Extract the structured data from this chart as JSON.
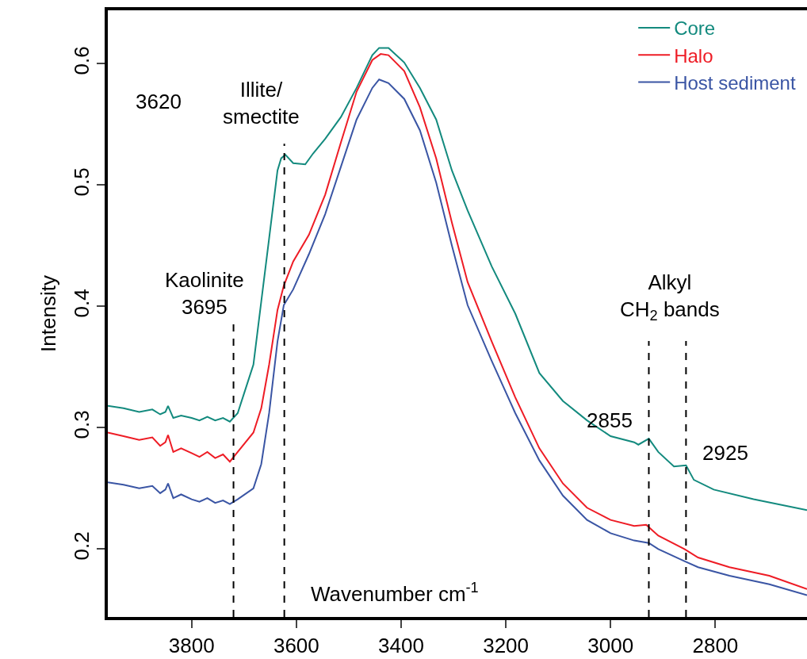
{
  "chart_data": {
    "type": "line",
    "xlabel": "Wavenumber cm$^{-1}$",
    "ylabel": "Intensity",
    "xlim": [
      3960,
      2625
    ],
    "xticks": [
      3800,
      3600,
      3400,
      3200,
      3000,
      2800
    ],
    "ylim": [
      0.144,
      0.644
    ],
    "yticks": [
      0.2,
      0.3,
      0.4,
      0.5,
      0.6
    ],
    "grid": false,
    "legend": "top right",
    "line_style": "solid",
    "marker": "none",
    "series": [
      {
        "name": "Core",
        "color": "#138a7e",
        "x": [
          3960,
          3930,
          3900,
          3875,
          3860,
          3850,
          3845,
          3835,
          3820,
          3800,
          3785,
          3770,
          3755,
          3740,
          3727,
          3712,
          3697,
          3682,
          3667,
          3652,
          3636,
          3629,
          3621,
          3606,
          3583,
          3568,
          3545,
          3515,
          3485,
          3455,
          3442,
          3424,
          3394,
          3364,
          3333,
          3303,
          3273,
          3227,
          3182,
          3136,
          3091,
          3045,
          3000,
          2955,
          2947,
          2927,
          2909,
          2879,
          2856,
          2841,
          2803,
          2727,
          2625
        ],
        "values": [
          0.318,
          0.316,
          0.313,
          0.315,
          0.311,
          0.313,
          0.318,
          0.308,
          0.31,
          0.308,
          0.306,
          0.309,
          0.306,
          0.308,
          0.305,
          0.312,
          0.332,
          0.352,
          0.404,
          0.456,
          0.512,
          0.522,
          0.525,
          0.518,
          0.517,
          0.526,
          0.538,
          0.556,
          0.58,
          0.607,
          0.613,
          0.613,
          0.601,
          0.58,
          0.554,
          0.512,
          0.479,
          0.433,
          0.394,
          0.345,
          0.322,
          0.306,
          0.293,
          0.288,
          0.286,
          0.291,
          0.28,
          0.268,
          0.269,
          0.257,
          0.249,
          0.241,
          0.232
        ]
      },
      {
        "name": "Halo",
        "color": "#ee1c25",
        "x": [
          3960,
          3930,
          3900,
          3875,
          3860,
          3850,
          3845,
          3835,
          3820,
          3800,
          3785,
          3770,
          3755,
          3740,
          3727,
          3712,
          3682,
          3667,
          3652,
          3636,
          3624,
          3606,
          3576,
          3545,
          3515,
          3485,
          3455,
          3439,
          3424,
          3394,
          3364,
          3333,
          3303,
          3273,
          3227,
          3182,
          3136,
          3091,
          3045,
          3000,
          2955,
          2932,
          2927,
          2909,
          2859,
          2833,
          2773,
          2697,
          2625
        ],
        "values": [
          0.296,
          0.293,
          0.29,
          0.292,
          0.285,
          0.288,
          0.294,
          0.28,
          0.283,
          0.279,
          0.276,
          0.28,
          0.275,
          0.278,
          0.272,
          0.28,
          0.296,
          0.316,
          0.352,
          0.397,
          0.417,
          0.437,
          0.459,
          0.492,
          0.535,
          0.577,
          0.603,
          0.608,
          0.607,
          0.594,
          0.564,
          0.522,
          0.469,
          0.42,
          0.371,
          0.325,
          0.283,
          0.254,
          0.234,
          0.224,
          0.219,
          0.22,
          0.218,
          0.211,
          0.2,
          0.193,
          0.185,
          0.178,
          0.167
        ]
      },
      {
        "name": "Host sediment",
        "color": "#3a55a4",
        "x": [
          3960,
          3930,
          3900,
          3875,
          3860,
          3850,
          3845,
          3835,
          3820,
          3800,
          3785,
          3770,
          3755,
          3740,
          3727,
          3712,
          3682,
          3667,
          3652,
          3636,
          3624,
          3606,
          3576,
          3545,
          3515,
          3485,
          3455,
          3442,
          3424,
          3394,
          3364,
          3333,
          3303,
          3273,
          3227,
          3182,
          3136,
          3091,
          3045,
          3000,
          2955,
          2927,
          2909,
          2859,
          2833,
          2773,
          2697,
          2625
        ],
        "values": [
          0.255,
          0.253,
          0.25,
          0.252,
          0.246,
          0.249,
          0.254,
          0.242,
          0.245,
          0.241,
          0.239,
          0.242,
          0.238,
          0.24,
          0.237,
          0.241,
          0.25,
          0.27,
          0.312,
          0.371,
          0.401,
          0.414,
          0.443,
          0.476,
          0.515,
          0.554,
          0.58,
          0.587,
          0.584,
          0.571,
          0.545,
          0.502,
          0.45,
          0.401,
          0.355,
          0.312,
          0.273,
          0.244,
          0.224,
          0.213,
          0.207,
          0.205,
          0.2,
          0.19,
          0.185,
          0.178,
          0.171,
          0.162
        ]
      }
    ],
    "ref_lines": [
      {
        "axis": "x",
        "value": 3720,
        "line_style": "dashed",
        "color": "#000000",
        "label": "Kaolinite\n3695"
      },
      {
        "axis": "x",
        "value": 3623,
        "line_style": "dashed",
        "color": "#000000",
        "label": "Illite/\nsmectite"
      },
      {
        "axis": "x",
        "value": 2927,
        "line_style": "dashed",
        "color": "#000000"
      },
      {
        "axis": "x",
        "value": 2856,
        "line_style": "dashed",
        "color": "#000000"
      }
    ],
    "annotations": [
      "3620",
      "Alkyl\nCH$_{2}$ bands",
      "2855",
      "2925"
    ]
  }
}
